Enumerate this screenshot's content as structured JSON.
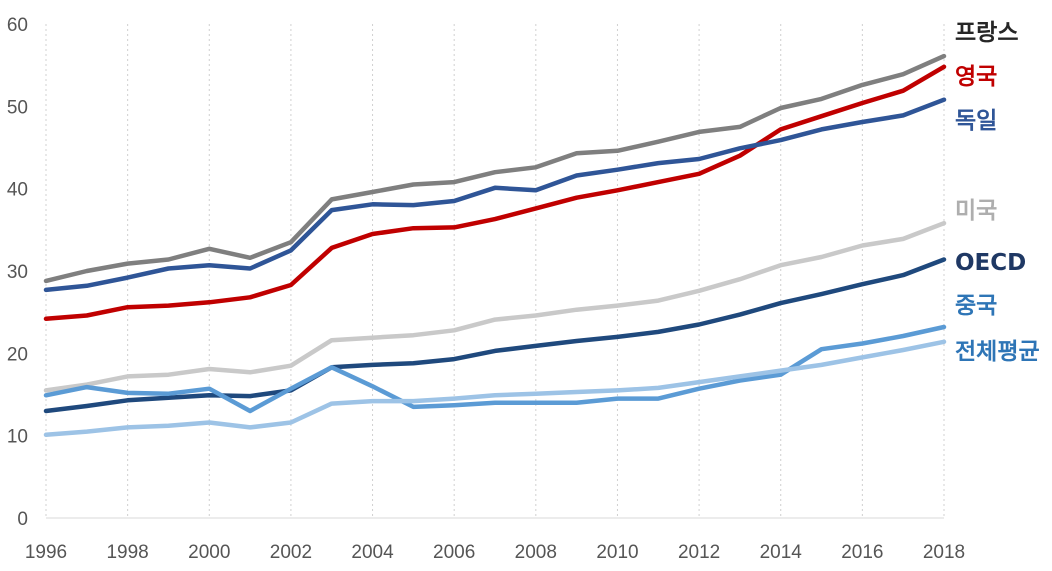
{
  "chart_data": {
    "type": "line",
    "title": "",
    "xlabel": "",
    "ylabel": "",
    "x": [
      1996,
      1997,
      1998,
      1999,
      2000,
      2001,
      2002,
      2003,
      2004,
      2005,
      2006,
      2007,
      2008,
      2009,
      2010,
      2011,
      2012,
      2013,
      2014,
      2015,
      2016,
      2017,
      2018
    ],
    "xticks": [
      1996,
      1998,
      2000,
      2002,
      2004,
      2006,
      2008,
      2010,
      2012,
      2014,
      2016,
      2018
    ],
    "xlim": [
      1996,
      2018
    ],
    "ylim": [
      0,
      60
    ],
    "yticks": [
      0,
      10,
      20,
      30,
      40,
      50,
      60
    ],
    "grid": "vertical dotted",
    "legend_placement": "right, labels next to line ends",
    "series": [
      {
        "name": "프랑스",
        "color": "#7f7f7f",
        "label_color": "#262626",
        "values": [
          28.8,
          30.0,
          30.9,
          31.4,
          32.7,
          31.6,
          33.5,
          38.7,
          39.6,
          40.5,
          40.8,
          42.0,
          42.6,
          44.3,
          44.6,
          45.7,
          46.9,
          47.5,
          49.8,
          50.9,
          52.6,
          53.9,
          56.1
        ]
      },
      {
        "name": "영국",
        "color": "#c00000",
        "label_color": "#c00000",
        "values": [
          24.2,
          24.6,
          25.6,
          25.8,
          26.2,
          26.8,
          28.3,
          32.8,
          34.5,
          35.2,
          35.3,
          36.3,
          37.6,
          38.9,
          39.8,
          40.8,
          41.8,
          44.0,
          47.2,
          48.8,
          50.4,
          51.9,
          54.8
        ]
      },
      {
        "name": "독일",
        "color": "#2f5597",
        "label_color": "#2f5597",
        "values": [
          27.7,
          28.2,
          29.2,
          30.3,
          30.7,
          30.3,
          32.5,
          37.4,
          38.1,
          38.0,
          38.5,
          40.1,
          39.8,
          41.6,
          42.3,
          43.1,
          43.6,
          44.9,
          45.9,
          47.2,
          48.1,
          48.9,
          50.8
        ]
      },
      {
        "name": "미국",
        "color": "#c9c9c9",
        "label_color": "#aeaeae",
        "values": [
          15.5,
          16.2,
          17.2,
          17.4,
          18.1,
          17.7,
          18.5,
          21.6,
          21.9,
          22.2,
          22.8,
          24.1,
          24.6,
          25.3,
          25.8,
          26.4,
          27.6,
          29.0,
          30.7,
          31.7,
          33.1,
          33.9,
          35.8
        ]
      },
      {
        "name": "OECD",
        "color": "#1f497d",
        "label_color": "#1f3864",
        "values": [
          13.0,
          13.6,
          14.3,
          14.6,
          14.9,
          14.8,
          15.5,
          18.3,
          18.6,
          18.8,
          19.3,
          20.3,
          20.9,
          21.5,
          22.0,
          22.6,
          23.5,
          24.7,
          26.1,
          27.2,
          28.4,
          29.5,
          31.4
        ]
      },
      {
        "name": "중국",
        "color": "#5b9bd5",
        "label_color": "#2e75b6",
        "values": [
          14.9,
          15.9,
          15.2,
          15.1,
          15.7,
          13.0,
          15.7,
          18.3,
          16.0,
          13.5,
          13.7,
          14.0,
          14.0,
          14.0,
          14.5,
          14.5,
          15.7,
          16.7,
          17.4,
          20.5,
          21.2,
          22.1,
          23.2
        ]
      },
      {
        "name": "전체평균",
        "color": "#9dc3e6",
        "label_color": "#2e75b6",
        "values": [
          10.1,
          10.5,
          11.0,
          11.2,
          11.6,
          11.0,
          11.6,
          13.9,
          14.2,
          14.2,
          14.5,
          14.9,
          15.1,
          15.3,
          15.5,
          15.8,
          16.5,
          17.2,
          17.9,
          18.6,
          19.5,
          20.4,
          21.4
        ]
      }
    ],
    "legend_positions_y": [
      32,
      76,
      120,
      210,
      262,
      305,
      351
    ]
  }
}
